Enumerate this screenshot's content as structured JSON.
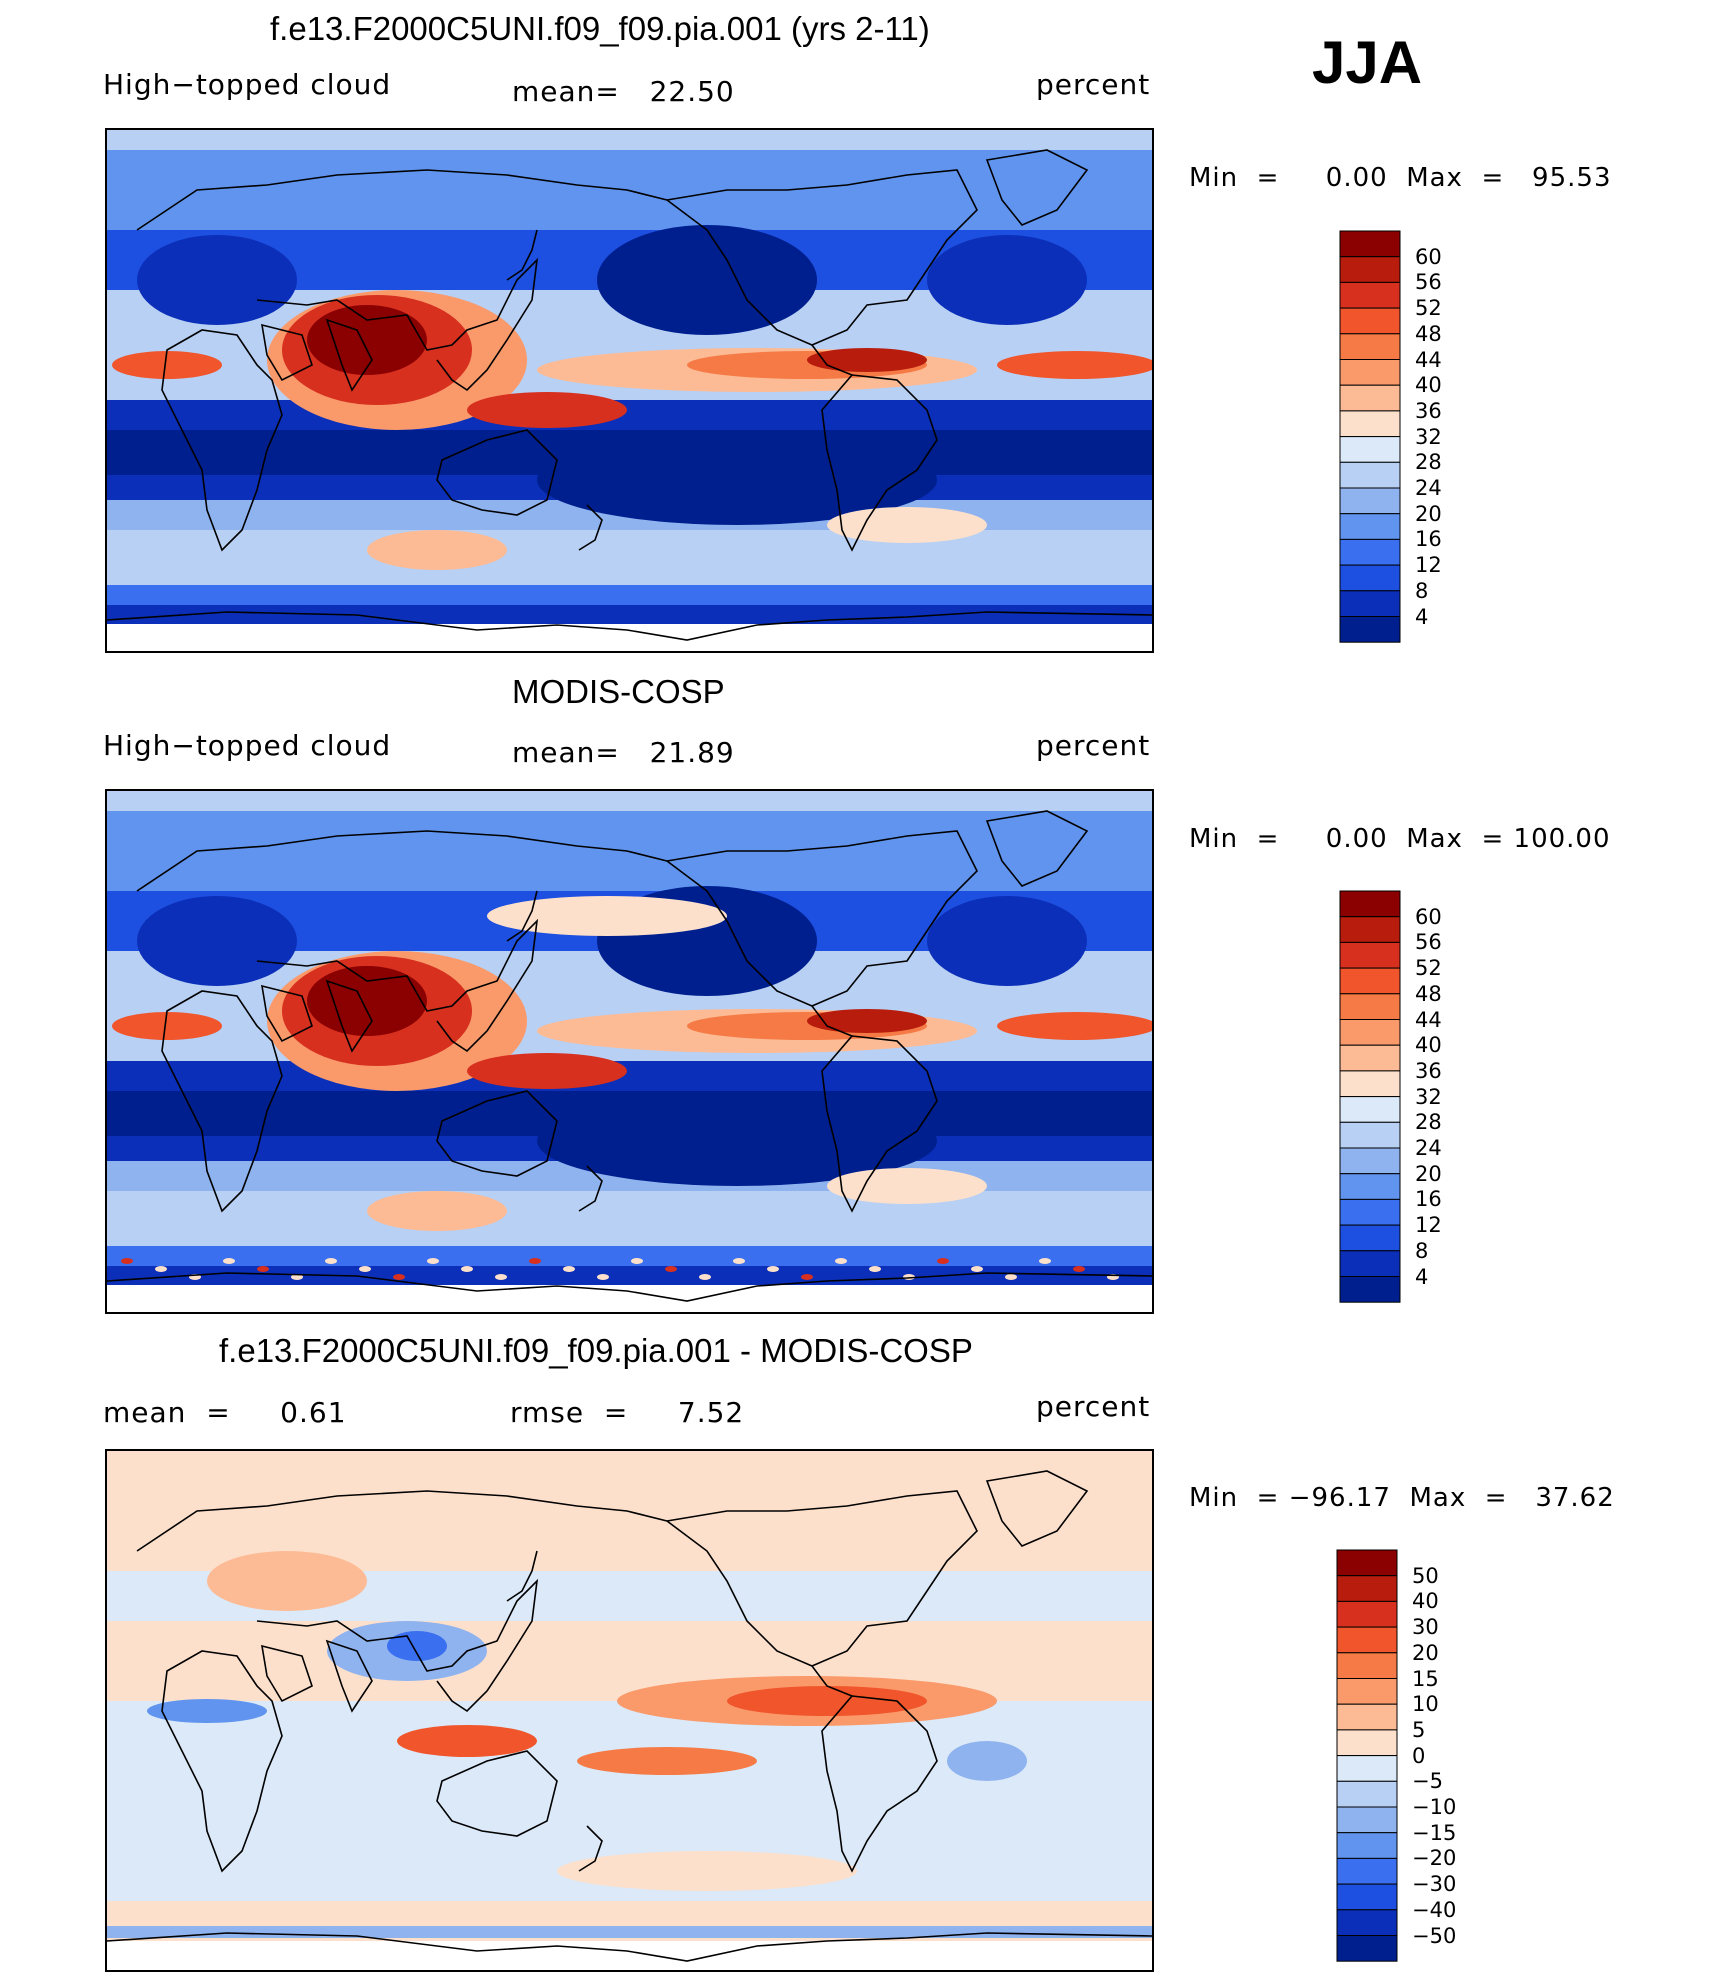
{
  "season": "JJA",
  "units_label": "percent",
  "panels": [
    {
      "title": "f.e13.F2000C5UNI.f09_f09.pia.001 (yrs 2-11)",
      "left_label": "High−topped cloud",
      "center_label": "mean=   22.50",
      "right_label": "percent",
      "minmax": "Min  =     0.00  Max  =   95.53"
    },
    {
      "title": "MODIS-COSP",
      "left_label": "High−topped cloud",
      "center_label": "mean=   21.89",
      "right_label": "percent",
      "minmax": "Min  =     0.00  Max  = 100.00"
    },
    {
      "title": "f.e13.F2000C5UNI.f09_f09.pia.001 - MODIS-COSP",
      "left_label": "mean  =     0.61",
      "center_label": "rmse  =     7.52",
      "right_label": "percent",
      "minmax": "Min  = −96.17  Max  =   37.62"
    }
  ],
  "colorbars": {
    "abs_levels": [
      "60",
      "56",
      "52",
      "48",
      "44",
      "40",
      "36",
      "32",
      "28",
      "24",
      "20",
      "16",
      "12",
      "8",
      "4"
    ],
    "abs_colors": [
      "#8b0000",
      "#b71c0c",
      "#d7301f",
      "#f0552b",
      "#f57a45",
      "#fa9a6b",
      "#fdbb95",
      "#fde0cb",
      "#dbe9f8",
      "#b7d0f4",
      "#8fb3ef",
      "#6094ee",
      "#3a6ff0",
      "#1d4fe0",
      "#0b2fb8",
      "#001f8f"
    ],
    "diff_levels": [
      "50",
      "40",
      "30",
      "20",
      "15",
      "10",
      "5",
      "0",
      "−5",
      "−10",
      "−15",
      "−20",
      "−30",
      "−40",
      "−50"
    ],
    "diff_colors": [
      "#8b0000",
      "#b71c0c",
      "#d7301f",
      "#f0552b",
      "#f57a45",
      "#fa9a6b",
      "#fdbb95",
      "#fde0cb",
      "#dbe9f8",
      "#b7d0f4",
      "#8fb3ef",
      "#6094ee",
      "#3a6ff0",
      "#1d4fe0",
      "#0b2fb8",
      "#001f8f"
    ]
  },
  "chart_data": [
    {
      "type": "heatmap",
      "title": "f.e13.F2000C5UNI.f09_f09.pia.001 (yrs 2-11)",
      "variable": "High−topped cloud",
      "units": "percent",
      "mean": 22.5,
      "min": 0.0,
      "max": 95.53,
      "contour_levels": [
        4,
        8,
        12,
        16,
        20,
        24,
        28,
        32,
        36,
        40,
        44,
        48,
        52,
        56,
        60
      ],
      "projection": "global cylindrical equidistant, centered on dateline"
    },
    {
      "type": "heatmap",
      "title": "MODIS-COSP",
      "variable": "High−topped cloud",
      "units": "percent",
      "mean": 21.89,
      "min": 0.0,
      "max": 100.0,
      "contour_levels": [
        4,
        8,
        12,
        16,
        20,
        24,
        28,
        32,
        36,
        40,
        44,
        48,
        52,
        56,
        60
      ],
      "projection": "global cylindrical equidistant, centered on dateline"
    },
    {
      "type": "heatmap",
      "title": "f.e13.F2000C5UNI.f09_f09.pia.001 - MODIS-COSP",
      "units": "percent",
      "mean": 0.61,
      "rmse": 7.52,
      "min": -96.17,
      "max": 37.62,
      "contour_levels": [
        -50,
        -40,
        -30,
        -20,
        -15,
        -10,
        -5,
        0,
        5,
        10,
        15,
        20,
        30,
        40,
        50
      ],
      "projection": "global cylindrical equidistant, centered on dateline"
    }
  ]
}
